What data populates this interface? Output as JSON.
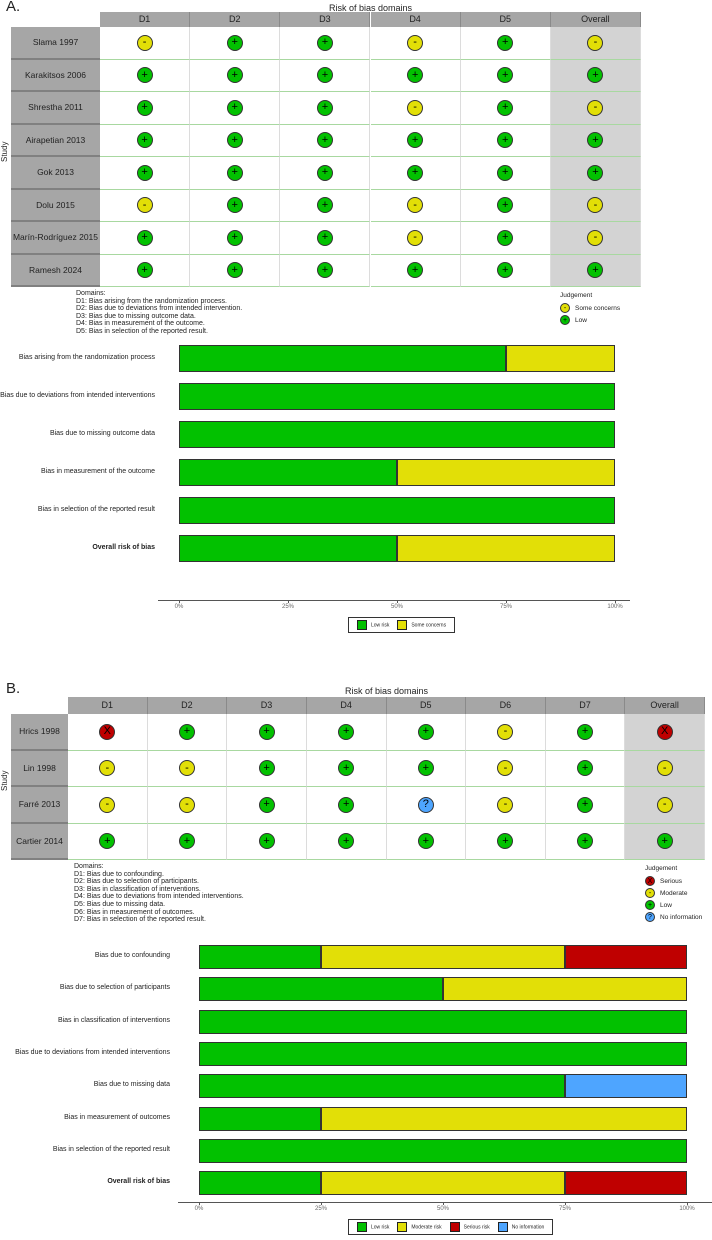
{
  "colors": {
    "low": "#02c100",
    "some": "#e2df07",
    "serious": "#bf0000",
    "noinfo": "#4ea5ff"
  },
  "chart_data": [
    {
      "type": "table",
      "panel": "A.",
      "title": "Risk of bias domains",
      "ylabel": "Study",
      "columns": [
        "D1",
        "D2",
        "D3",
        "D4",
        "D5",
        "Overall"
      ],
      "rows": [
        {
          "study": "Slama 1997",
          "values": [
            "some",
            "low",
            "low",
            "some",
            "low",
            "some"
          ]
        },
        {
          "study": "Karakitsos 2006",
          "values": [
            "low",
            "low",
            "low",
            "low",
            "low",
            "low"
          ]
        },
        {
          "study": "Shrestha 2011",
          "values": [
            "low",
            "low",
            "low",
            "some",
            "low",
            "some"
          ]
        },
        {
          "study": "Airapetian 2013",
          "values": [
            "low",
            "low",
            "low",
            "low",
            "low",
            "low"
          ]
        },
        {
          "study": "Gok 2013",
          "values": [
            "low",
            "low",
            "low",
            "low",
            "low",
            "low"
          ]
        },
        {
          "study": "Dolu 2015",
          "values": [
            "some",
            "low",
            "low",
            "some",
            "low",
            "some"
          ]
        },
        {
          "study": "Marín-Rodríguez 2015",
          "values": [
            "low",
            "low",
            "low",
            "some",
            "low",
            "some"
          ]
        },
        {
          "study": "Ramesh 2024",
          "values": [
            "low",
            "low",
            "low",
            "low",
            "low",
            "low"
          ]
        }
      ],
      "domains_title": "Domains:",
      "domains": [
        "D1: Bias arising from the randomization process.",
        "D2: Bias due to deviations from intended intervention.",
        "D3: Bias due to missing outcome data.",
        "D4: Bias in measurement of the outcome.",
        "D5: Bias in selection of the reported result."
      ],
      "legend_title": "Judgement",
      "legend": [
        {
          "key": "some",
          "symbol": "-",
          "label": "Some concerns"
        },
        {
          "key": "low",
          "symbol": "+",
          "label": "Low"
        }
      ]
    },
    {
      "type": "bar",
      "stacked": true,
      "xlim": [
        0,
        100
      ],
      "ticks": [
        "0%",
        "25%",
        "50%",
        "75%",
        "100%"
      ],
      "categories": [
        "Bias arising from the randomization process",
        "Bias due to deviations from intended interventions",
        "Bias due to missing outcome data",
        "Bias in measurement of the outcome",
        "Bias in selection of the reported result",
        "Overall risk of bias"
      ],
      "series": [
        {
          "key": "low",
          "name": "Low risk",
          "values": [
            75,
            100,
            100,
            50,
            100,
            50
          ]
        },
        {
          "key": "some",
          "name": "Some concerns",
          "values": [
            25,
            0,
            0,
            50,
            0,
            50
          ]
        }
      ],
      "legend": "bottom"
    },
    {
      "type": "table",
      "panel": "B.",
      "title": "Risk of bias domains",
      "ylabel": "Study",
      "columns": [
        "D1",
        "D2",
        "D3",
        "D4",
        "D5",
        "D6",
        "D7",
        "Overall"
      ],
      "rows": [
        {
          "study": "Hrics 1998",
          "values": [
            "serious",
            "low",
            "low",
            "low",
            "low",
            "some",
            "low",
            "serious"
          ]
        },
        {
          "study": "Lin 1998",
          "values": [
            "some",
            "some",
            "low",
            "low",
            "low",
            "some",
            "low",
            "some"
          ]
        },
        {
          "study": "Farré 2013",
          "values": [
            "some",
            "some",
            "low",
            "low",
            "noinfo",
            "some",
            "low",
            "some"
          ]
        },
        {
          "study": "Cartier 2014",
          "values": [
            "low",
            "low",
            "low",
            "low",
            "low",
            "low",
            "low",
            "low"
          ]
        }
      ],
      "domains_title": "Domains:",
      "domains": [
        "D1: Bias due to confounding.",
        "D2: Bias due to selection of participants.",
        "D3: Bias in classification of interventions.",
        "D4: Bias due to deviations from intended interventions.",
        "D5: Bias due to missing data.",
        "D6: Bias in measurement of outcomes.",
        "D7: Bias in selection of the reported result."
      ],
      "legend_title": "Judgement",
      "legend": [
        {
          "key": "serious",
          "symbol": "X",
          "label": "Serious"
        },
        {
          "key": "some",
          "symbol": "-",
          "label": "Moderate"
        },
        {
          "key": "low",
          "symbol": "+",
          "label": "Low"
        },
        {
          "key": "noinfo",
          "symbol": "?",
          "label": "No information"
        }
      ]
    },
    {
      "type": "bar",
      "stacked": true,
      "xlim": [
        0,
        100
      ],
      "ticks": [
        "0%",
        "25%",
        "50%",
        "75%",
        "100%"
      ],
      "categories": [
        "Bias due to confounding",
        "Bias due to selection of participants",
        "Bias in classification of interventions",
        "Bias due to deviations from intended interventions",
        "Bias due to missing data",
        "Bias in measurement of outcomes",
        "Bias in selection of the reported result",
        "Overall risk of bias"
      ],
      "series": [
        {
          "key": "low",
          "name": "Low risk",
          "values": [
            25,
            50,
            100,
            100,
            75,
            25,
            100,
            25
          ]
        },
        {
          "key": "some",
          "name": "Moderate risk",
          "values": [
            50,
            50,
            0,
            0,
            0,
            75,
            0,
            50
          ]
        },
        {
          "key": "serious",
          "name": "Serious risk",
          "values": [
            25,
            0,
            0,
            0,
            0,
            0,
            0,
            25
          ]
        },
        {
          "key": "noinfo",
          "name": "No information",
          "values": [
            0,
            0,
            0,
            0,
            25,
            0,
            0,
            0
          ]
        }
      ],
      "legend": "bottom"
    }
  ]
}
